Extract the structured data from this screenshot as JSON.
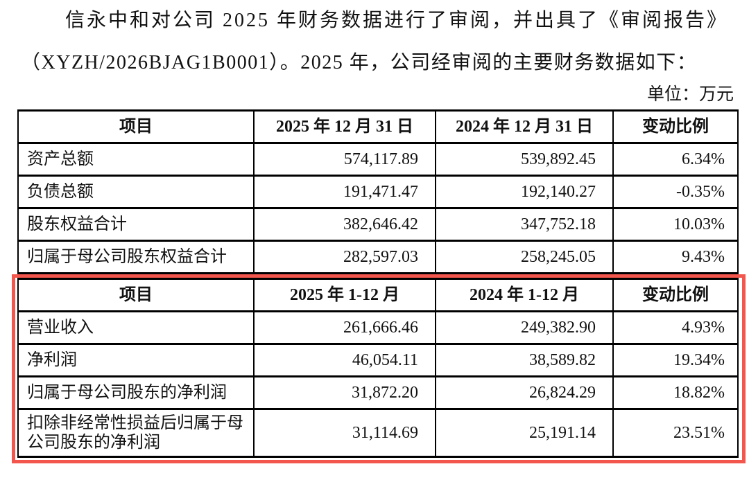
{
  "document": {
    "paragraph": {
      "line1": "信永中和对公司 2025 年财务数据进行了审阅，并出具了《审阅报告》",
      "line2": "（XYZH/2026BJAG1B0001）。2025 年，公司经审阅的主要财务数据如下："
    },
    "unit_label": "单位：万元"
  },
  "colors": {
    "text": "#111111",
    "table_border": "#000000",
    "highlight_border": "#f2564c"
  },
  "balance_sheet_table": {
    "headers": [
      "项目",
      "2025 年 12 月 31 日",
      "2024 年 12 月 31 日",
      "变动比例"
    ],
    "rows": [
      {
        "item": "资产总额",
        "current": "574,117.89",
        "prior": "539,892.45",
        "change": "6.34%"
      },
      {
        "item": "负债总额",
        "current": "191,471.47",
        "prior": "192,140.27",
        "change": "-0.35%"
      },
      {
        "item": "股东权益合计",
        "current": "382,646.42",
        "prior": "347,752.18",
        "change": "10.03%"
      },
      {
        "item": "归属于母公司股东权益合计",
        "current": "282,597.03",
        "prior": "258,245.05",
        "change": "9.43%"
      }
    ]
  },
  "income_statement_table": {
    "headers": [
      "项目",
      "2025 年 1-12 月",
      "2024 年 1-12 月",
      "变动比例"
    ],
    "rows": [
      {
        "item": "营业收入",
        "current": "261,666.46",
        "prior": "249,382.90",
        "change": "4.93%"
      },
      {
        "item": "净利润",
        "current": "46,054.11",
        "prior": "38,589.82",
        "change": "19.34%"
      },
      {
        "item": "归属于母公司股东的净利润",
        "current": "31,872.20",
        "prior": "26,824.29",
        "change": "18.82%"
      },
      {
        "item": "扣除非经常性损益后归属于母公司股东的净利润",
        "current": "31,114.69",
        "prior": "25,191.14",
        "change": "23.51%"
      }
    ]
  }
}
